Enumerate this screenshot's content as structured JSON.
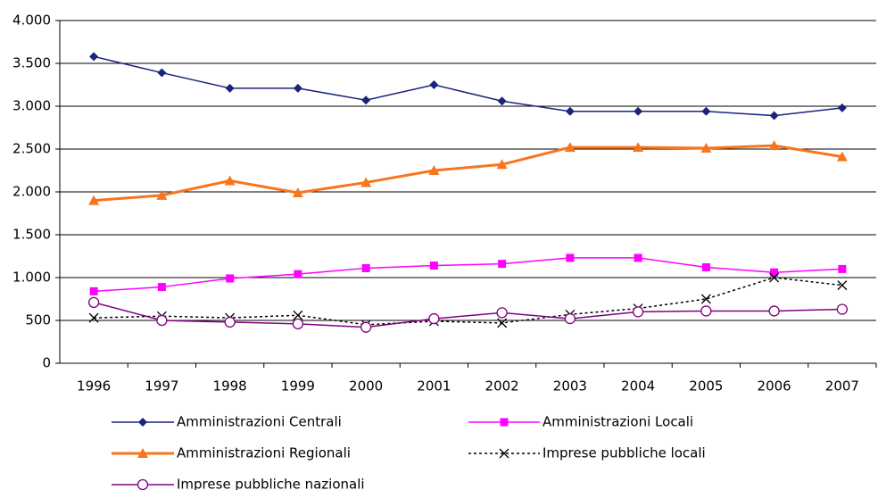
{
  "chart_data": {
    "type": "line",
    "categories": [
      "1996",
      "1997",
      "1998",
      "1999",
      "2000",
      "2001",
      "2002",
      "2003",
      "2004",
      "2005",
      "2006",
      "2007"
    ],
    "series": [
      {
        "name": "Amministrazioni Centrali",
        "color": "#1a237e",
        "marker": "diamond",
        "dash": false,
        "values": [
          3580,
          3390,
          3210,
          3210,
          3070,
          3250,
          3060,
          2940,
          2940,
          2940,
          2890,
          2980
        ]
      },
      {
        "name": "Amministrazioni Locali",
        "color": "#ff00ff",
        "marker": "square",
        "dash": false,
        "values": [
          840,
          890,
          990,
          1040,
          1110,
          1140,
          1160,
          1230,
          1230,
          1120,
          1060,
          1100
        ]
      },
      {
        "name": "Amministrazioni Regionali",
        "color": "#f7751e",
        "marker": "triangle",
        "dash": false,
        "values": [
          1900,
          1960,
          2130,
          1990,
          2110,
          2250,
          2320,
          2520,
          2520,
          2510,
          2540,
          2410
        ]
      },
      {
        "name": "Imprese pubbliche locali",
        "color": "#000000",
        "marker": "x",
        "dash": true,
        "values": [
          530,
          550,
          530,
          560,
          450,
          490,
          470,
          570,
          640,
          750,
          1000,
          910
        ]
      },
      {
        "name": "Imprese pubbliche nazionali",
        "color": "#800080",
        "marker": "circle-open",
        "dash": false,
        "values": [
          710,
          500,
          480,
          460,
          420,
          520,
          590,
          520,
          600,
          610,
          610,
          630
        ]
      }
    ],
    "ylim": [
      0,
      4000
    ],
    "yticks": [
      0,
      500,
      {
        "value": 1000,
        "label": "1.000"
      },
      {
        "value": 1500,
        "label": "1.500"
      },
      {
        "value": 2000,
        "label": "2.000"
      },
      {
        "value": 2500,
        "label": "2.500"
      },
      {
        "value": 3000,
        "label": "3.000"
      },
      {
        "value": 3500,
        "label": "3.500"
      },
      {
        "value": 4000,
        "label": "4.000"
      }
    ],
    "grid": true
  }
}
